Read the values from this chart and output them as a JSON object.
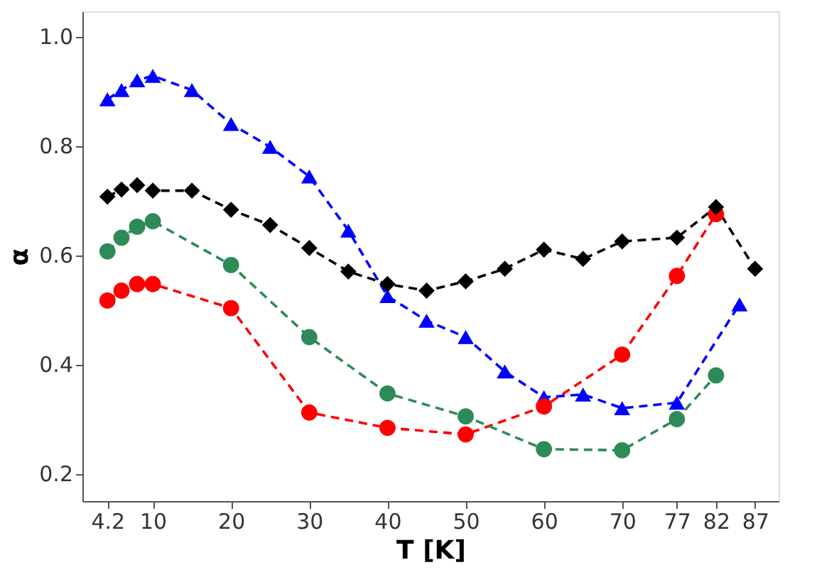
{
  "chart_data": {
    "type": "line",
    "xlabel": "T [K]",
    "ylabel": "α",
    "xlim": [
      1,
      90
    ],
    "xticks": [
      4.2,
      10,
      20,
      30,
      40,
      50,
      60,
      70,
      77,
      82,
      87
    ],
    "ylim": [
      0.15,
      1.046
    ],
    "yticks": [
      0.2,
      0.4,
      0.6,
      0.8,
      {
        "value": 1.0,
        "label": "1.0"
      }
    ],
    "grid": false,
    "line_style": "dashed",
    "series": [
      {
        "color": "#000000",
        "marker": "diamond",
        "x": [
          4.2,
          6,
          8,
          10,
          15,
          20,
          25,
          30,
          35,
          40,
          45,
          50,
          55,
          60,
          65,
          70,
          77,
          82,
          87
        ],
        "values": [
          0.707,
          0.72,
          0.728,
          0.718,
          0.718,
          0.683,
          0.655,
          0.613,
          0.57,
          0.547,
          0.535,
          0.552,
          0.575,
          0.61,
          0.593,
          0.625,
          0.632,
          0.688,
          0.575
        ]
      },
      {
        "color": "#ff0000",
        "marker": "circle",
        "x": [
          4.2,
          6,
          8,
          10,
          20,
          30,
          40,
          50,
          60,
          70,
          77,
          82
        ],
        "values": [
          0.517,
          0.535,
          0.547,
          0.547,
          0.503,
          0.312,
          0.284,
          0.272,
          0.323,
          0.418,
          0.562,
          0.675
        ]
      },
      {
        "color": "#0000ff",
        "marker": "triangle",
        "x": [
          4.2,
          6,
          8,
          10,
          15,
          20,
          25,
          30,
          35,
          40,
          45,
          50,
          55,
          60,
          65,
          70,
          77,
          85
        ],
        "values": [
          0.885,
          0.902,
          0.92,
          0.928,
          0.902,
          0.84,
          0.798,
          0.744,
          0.645,
          0.525,
          0.48,
          0.45,
          0.387,
          0.34,
          0.345,
          0.32,
          0.33,
          0.51
        ]
      },
      {
        "color": "#2e8b57",
        "marker": "circle",
        "x": [
          4.2,
          6,
          8,
          10,
          20,
          30,
          40,
          50,
          60,
          70,
          77,
          82
        ],
        "values": [
          0.607,
          0.632,
          0.652,
          0.662,
          0.582,
          0.45,
          0.347,
          0.305,
          0.245,
          0.243,
          0.3,
          0.38
        ]
      }
    ]
  }
}
